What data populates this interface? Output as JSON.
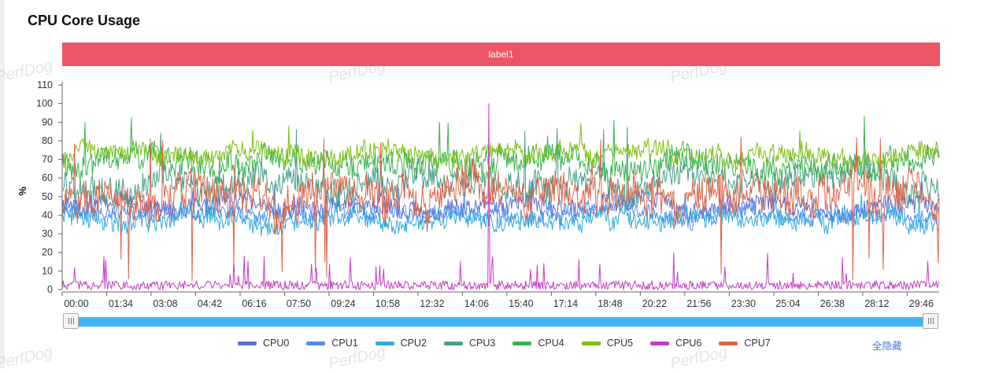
{
  "page": {
    "title": "CPU Core Usage",
    "label_bar": "label1",
    "watermark": "PerfDog",
    "hide_all": "全隐藏"
  },
  "chart_data": {
    "type": "line",
    "title": "CPU Core Usage",
    "xlabel": "",
    "ylabel": "%",
    "ylim": [
      0,
      110
    ],
    "yticks": [
      0,
      10,
      20,
      30,
      40,
      50,
      60,
      70,
      80,
      90,
      100,
      110
    ],
    "xticks": [
      "00:00",
      "01:34",
      "03:08",
      "04:42",
      "06:16",
      "07:50",
      "09:24",
      "10:58",
      "12:32",
      "14:06",
      "15:40",
      "17:14",
      "18:48",
      "20:22",
      "21:56",
      "23:30",
      "25:04",
      "26:38",
      "28:12",
      "29:46"
    ],
    "x_range_seconds": [
      0,
      1850
    ],
    "x_interval_seconds": 2,
    "grid": false,
    "legend_position": "bottom",
    "annotation_band": {
      "label": "label1",
      "color": "#ec5565"
    },
    "series": [
      {
        "name": "CPU0",
        "color": "#5b6fd4",
        "mean": 45,
        "spread": 6,
        "min": 32,
        "max": 60
      },
      {
        "name": "CPU1",
        "color": "#4c8df5",
        "mean": 41,
        "spread": 5,
        "min": 28,
        "max": 55
      },
      {
        "name": "CPU2",
        "color": "#2eaadf",
        "mean": 38,
        "spread": 6,
        "min": 22,
        "max": 55
      },
      {
        "name": "CPU3",
        "color": "#43a08a",
        "mean": 57,
        "spread": 9,
        "min": 35,
        "max": 88
      },
      {
        "name": "CPU4",
        "color": "#35b24e",
        "mean": 68,
        "spread": 8,
        "min": 40,
        "max": 94
      },
      {
        "name": "CPU5",
        "color": "#7bbf10",
        "mean": 73,
        "spread": 6,
        "min": 45,
        "max": 90
      },
      {
        "name": "CPU6",
        "color": "#c63cc6",
        "mean": 2.5,
        "spread": 2.5,
        "min": 0,
        "max": 100
      },
      {
        "name": "CPU7",
        "color": "#e06448",
        "mean": 50,
        "spread": 12,
        "min": 3,
        "max": 82
      }
    ]
  }
}
